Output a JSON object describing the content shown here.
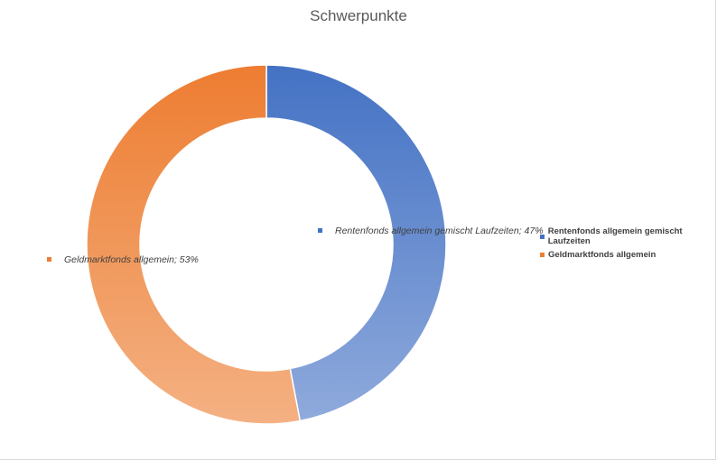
{
  "chart_data": {
    "type": "doughnut",
    "title": "Schwerpunkte",
    "series": [
      {
        "name": "",
        "slices": [
          {
            "label": "Rentenfonds allgemein gemischt Laufzeiten",
            "value": 47,
            "data_label": "Rentenfonds allgemein gemischt Laufzeiten; 47%",
            "color": "#4472C4",
            "color_light": "#8FAADC"
          },
          {
            "label": "Geldmarktfonds allgemein",
            "value": 53,
            "data_label": "Geldmarktfonds allgemein; 53%",
            "color": "#ED7D31",
            "color_light": "#F4B183"
          }
        ]
      }
    ],
    "legend_position": "right",
    "start_angle": "top, clockwise"
  }
}
